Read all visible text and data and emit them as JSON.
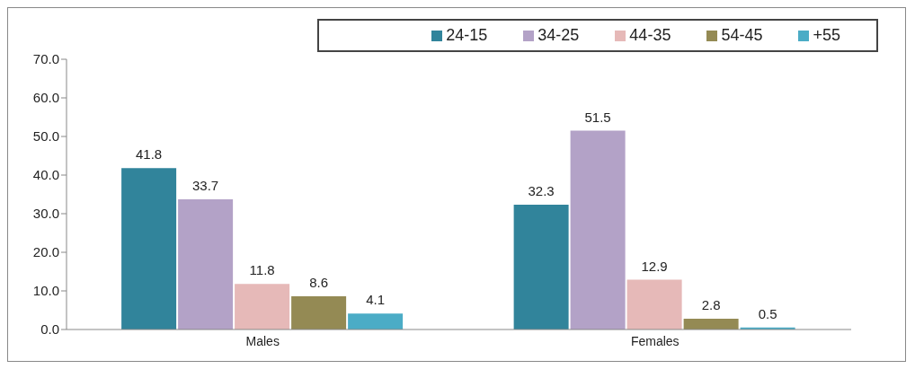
{
  "chart_data": {
    "type": "bar",
    "categories": [
      "Males",
      "Females"
    ],
    "series": [
      {
        "name": "24-15",
        "color": "#31849b",
        "values": [
          41.8,
          32.3
        ]
      },
      {
        "name": "34-25",
        "color": "#b3a2c7",
        "values": [
          33.7,
          51.5
        ]
      },
      {
        "name": "44-35",
        "color": "#e6b9b8",
        "values": [
          11.8,
          12.9
        ]
      },
      {
        "name": "54-45",
        "color": "#948a54",
        "values": [
          8.6,
          2.8
        ]
      },
      {
        "name": "+55",
        "color": "#4bacc6",
        "values": [
          4.1,
          0.5
        ]
      }
    ],
    "ylim": [
      0,
      70
    ],
    "yticks": [
      {
        "value": 0,
        "label": "0.0"
      },
      {
        "value": 10,
        "label": "10.0"
      },
      {
        "value": 20,
        "label": "20.0"
      },
      {
        "value": 30,
        "label": "30.0"
      },
      {
        "value": 40,
        "label": "40.0"
      },
      {
        "value": 50,
        "label": "50.0"
      },
      {
        "value": 60,
        "label": "60.0"
      },
      {
        "value": 70,
        "label": "70.0"
      }
    ],
    "data_labels": true,
    "legend": "top right",
    "grid": false
  }
}
